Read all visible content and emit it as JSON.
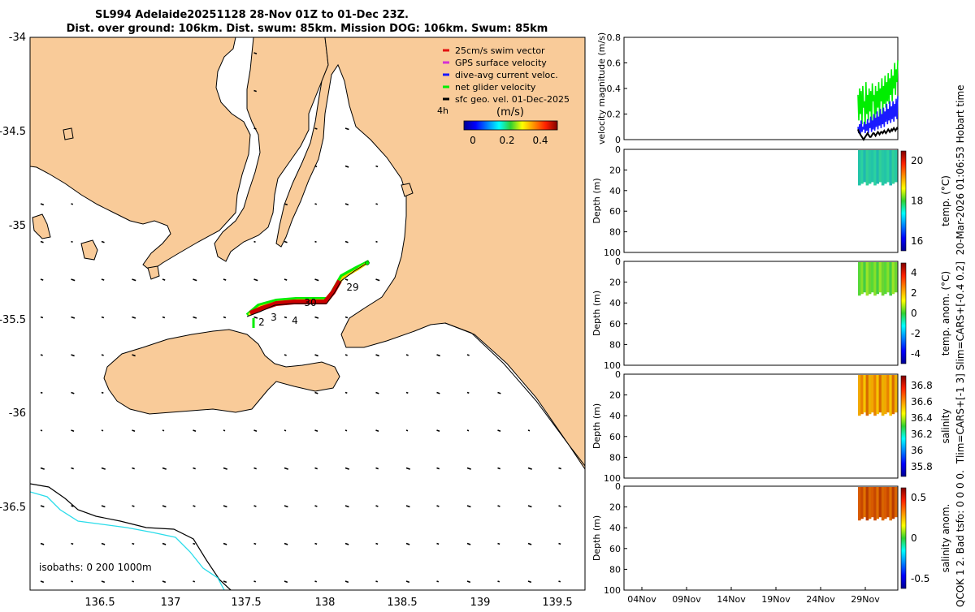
{
  "header": {
    "title_line1": "SL994 Adelaide20251128 28-Nov 01Z to 01-Dec 23Z.",
    "title_line2": "Dist. over ground: 106km. Dist. swum: 85km. Mission DOG: 106km. Swum: 85km"
  },
  "side_label": {
    "top": "20-Mar-2026 01:06:53 Hobart time",
    "middle": "Tlim=CARS+[-1 3] Slim=CARS+[-0.4 0.2]",
    "bottom": "QCOK 1  2. Bad tsfo: 0  0  0  0."
  },
  "colors": {
    "land": "#f9cb99",
    "sea": "#ffffff",
    "isobath_200": "#000000",
    "isobath_1000": "#2adcea",
    "net_velocity": "#00ee00",
    "gps_velocity": "#d430d4",
    "current_velocity": "#1a1aff",
    "swim_vector": "#e21010",
    "sfc_geo": "#000000"
  },
  "legend": {
    "items": [
      {
        "label": "25cm/s swim vector",
        "color": "#e21010"
      },
      {
        "label": "GPS surface velocity",
        "color": "#d430d4"
      },
      {
        "label": "dive-avg current veloc.",
        "color": "#1a1aff"
      },
      {
        "label": "net glider velocity",
        "color": "#00ee00"
      },
      {
        "label": "sfc geo. vel. 01-Dec-2025",
        "color": "#000000"
      }
    ],
    "time_label": "4h",
    "colorbar_title": "(m/s)",
    "colorbar_ticks": [
      "0",
      "0.2",
      "0.4"
    ]
  },
  "map": {
    "x_ticks": [
      "136.5",
      "137",
      "137.5",
      "138",
      "138.5",
      "139",
      "139.5"
    ],
    "y_ticks": [
      "-34",
      "-34.5",
      "-35",
      "-35.5",
      "-36",
      "-36.5"
    ],
    "isobath_label": "isobaths: 0   200  1000m",
    "track_day_labels": [
      "2",
      "3",
      "4",
      "29",
      "30"
    ]
  },
  "chart_data": [
    {
      "type": "line",
      "title": "velocity magnitude (m/s)",
      "ylabel": "velocity magnitude (m/s)",
      "ylim": [
        0,
        0.8
      ],
      "yticks": [
        "0",
        "0.2",
        "0.4",
        "0.6",
        "0.8"
      ],
      "x": [
        0,
        0.02,
        0.04,
        0.06,
        0.08,
        0.1,
        0.12,
        0.14,
        0.16,
        0.18,
        0.2,
        0.22,
        0.24,
        0.26,
        0.28,
        0.3,
        0.32,
        0.34,
        0.36,
        0.38,
        0.4,
        0.42,
        0.44,
        0.46,
        0.48,
        0.5,
        0.52,
        0.54,
        0.56,
        0.58,
        0.6,
        0.62,
        0.64,
        0.66,
        0.68,
        0.7,
        0.72,
        0.74,
        0.76,
        0.78,
        0.8,
        0.82,
        0.84,
        0.86,
        0.88,
        0.9,
        0.92,
        0.94,
        0.96,
        0.98,
        1.0
      ],
      "series": [
        {
          "name": "net glider velocity",
          "color": "#00ee00",
          "values": [
            0.35,
            0.15,
            0.4,
            0.2,
            0.38,
            0.12,
            0.42,
            0.25,
            0.3,
            0.1,
            0.45,
            0.2,
            0.35,
            0.15,
            0.4,
            0.22,
            0.38,
            0.1,
            0.44,
            0.3,
            0.35,
            0.15,
            0.42,
            0.2,
            0.38,
            0.25,
            0.45,
            0.18,
            0.4,
            0.3,
            0.48,
            0.2,
            0.42,
            0.28,
            0.5,
            0.25,
            0.45,
            0.3,
            0.52,
            0.28,
            0.48,
            0.35,
            0.55,
            0.3,
            0.5,
            0.4,
            0.6,
            0.35,
            0.55,
            0.45,
            0.62
          ]
        },
        {
          "name": "dive-avg current veloc.",
          "color": "#1a1aff",
          "values": [
            0.1,
            0.05,
            0.12,
            0.04,
            0.15,
            0.06,
            0.1,
            0.08,
            0.14,
            0.05,
            0.12,
            0.07,
            0.16,
            0.05,
            0.13,
            0.09,
            0.18,
            0.06,
            0.15,
            0.08,
            0.2,
            0.07,
            0.17,
            0.1,
            0.22,
            0.08,
            0.18,
            0.11,
            0.24,
            0.09,
            0.2,
            0.12,
            0.25,
            0.1,
            0.22,
            0.14,
            0.28,
            0.12,
            0.24,
            0.15,
            0.3,
            0.13,
            0.26,
            0.16,
            0.3,
            0.14,
            0.28,
            0.18,
            0.32,
            0.16,
            0.34
          ]
        },
        {
          "name": "sfc geo. vel.",
          "color": "#000000",
          "values": [
            0.08,
            0.06,
            0.05,
            0.04,
            0.03,
            0.02,
            0.01,
            0.0,
            0.01,
            0.02,
            0.03,
            0.04,
            0.05,
            0.04,
            0.03,
            0.02,
            0.02,
            0.03,
            0.04,
            0.05,
            0.05,
            0.04,
            0.03,
            0.04,
            0.05,
            0.06,
            0.05,
            0.04,
            0.05,
            0.06,
            0.06,
            0.05,
            0.06,
            0.07,
            0.06,
            0.05,
            0.06,
            0.07,
            0.08,
            0.07,
            0.06,
            0.07,
            0.08,
            0.07,
            0.08,
            0.09,
            0.08,
            0.07,
            0.08,
            0.09,
            0.08
          ]
        }
      ]
    },
    {
      "type": "heatmap",
      "ylabel": "Depth (m)",
      "ylim": [
        0,
        100
      ],
      "yticks": [
        "0",
        "20",
        "40",
        "60",
        "80",
        "100"
      ],
      "colorbar_label": "temp. (°C)",
      "colorbar_ticks": [
        "16",
        "18",
        "20"
      ],
      "depth_range": [
        0,
        35
      ],
      "dominant_value": 17.5
    },
    {
      "type": "heatmap",
      "ylabel": "Depth (m)",
      "ylim": [
        0,
        100
      ],
      "yticks": [
        "0",
        "20",
        "40",
        "60",
        "80",
        "100"
      ],
      "colorbar_label": "temp. anom. (°C)",
      "colorbar_ticks": [
        "-4",
        "-2",
        "0",
        "2",
        "4"
      ],
      "depth_range": [
        0,
        33
      ],
      "dominant_value": 0.8
    },
    {
      "type": "heatmap",
      "ylabel": "Depth (m)",
      "ylim": [
        0,
        100
      ],
      "yticks": [
        "0",
        "20",
        "40",
        "60",
        "80",
        "100"
      ],
      "colorbar_label": "salinity",
      "colorbar_ticks": [
        "35.8",
        "36",
        "36.2",
        "36.4",
        "36.6",
        "36.8"
      ],
      "depth_range": [
        0,
        40
      ],
      "dominant_value": 36.6
    },
    {
      "type": "heatmap",
      "ylabel": "Depth (m)",
      "ylim": [
        0,
        100
      ],
      "yticks": [
        "0",
        "20",
        "40",
        "60",
        "80",
        "100"
      ],
      "colorbar_label": "salinity anom.",
      "colorbar_ticks": [
        "-0.5",
        "0",
        "0.5"
      ],
      "depth_range": [
        0,
        33
      ],
      "dominant_value": 0.35,
      "xticks": [
        "04Nov",
        "09Nov",
        "14Nov",
        "19Nov",
        "24Nov",
        "29Nov"
      ]
    }
  ]
}
